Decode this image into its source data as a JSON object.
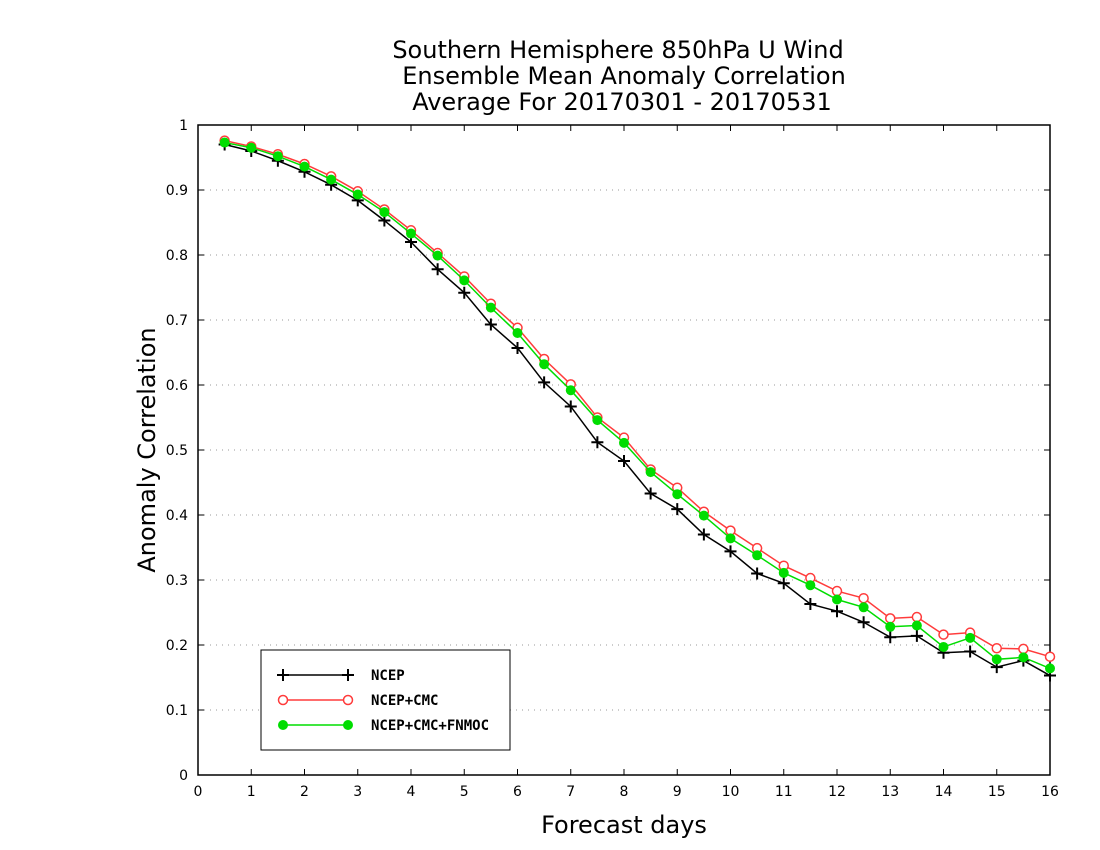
{
  "chart_data": {
    "type": "line",
    "title": [
      "Southern Hemisphere 850hPa U Wind",
      "Ensemble Mean Anomaly Correlation",
      "Average For 20170301 - 20170531"
    ],
    "xlabel": "Forecast days",
    "ylabel": "Anomaly Correlation",
    "xlim": [
      0,
      16
    ],
    "ylim": [
      0,
      1
    ],
    "xticks": [
      "0",
      "1",
      "2",
      "3",
      "4",
      "5",
      "6",
      "7",
      "8",
      "9",
      "10",
      "11",
      "12",
      "13",
      "14",
      "15",
      "16"
    ],
    "yticks": [
      "0",
      "0.1",
      "0.2",
      "0.3",
      "0.4",
      "0.5",
      "0.6",
      "0.7",
      "0.8",
      "0.9",
      "1"
    ],
    "grid": "dotted horizontal",
    "legend_position": "bottom-left",
    "x": [
      0.5,
      1,
      1.5,
      2,
      2.5,
      3,
      3.5,
      4,
      4.5,
      5,
      5.5,
      6,
      6.5,
      7,
      7.5,
      8,
      8.5,
      9,
      9.5,
      10,
      10.5,
      11,
      11.5,
      12,
      12.5,
      13,
      13.5,
      14,
      14.5,
      15,
      15.5,
      16
    ],
    "series": [
      {
        "name": "NCEP",
        "color": "#000000",
        "marker": "plus",
        "values": [
          0.97,
          0.96,
          0.945,
          0.928,
          0.908,
          0.884,
          0.853,
          0.82,
          0.778,
          0.742,
          0.693,
          0.657,
          0.604,
          0.567,
          0.512,
          0.483,
          0.433,
          0.409,
          0.37,
          0.344,
          0.31,
          0.295,
          0.263,
          0.252,
          0.235,
          0.212,
          0.214,
          0.188,
          0.19,
          0.166,
          0.176,
          0.153
        ]
      },
      {
        "name": "NCEP+CMC",
        "color": "#ff3b3b",
        "marker": "open-circle",
        "values": [
          0.976,
          0.967,
          0.955,
          0.94,
          0.921,
          0.898,
          0.87,
          0.838,
          0.803,
          0.767,
          0.725,
          0.688,
          0.64,
          0.601,
          0.55,
          0.519,
          0.47,
          0.442,
          0.405,
          0.376,
          0.349,
          0.322,
          0.303,
          0.283,
          0.272,
          0.241,
          0.243,
          0.216,
          0.219,
          0.195,
          0.194,
          0.182
        ]
      },
      {
        "name": "NCEP+CMC+FNMOC",
        "color": "#00dd00",
        "marker": "filled-circle",
        "values": [
          0.973,
          0.965,
          0.952,
          0.936,
          0.916,
          0.893,
          0.866,
          0.833,
          0.799,
          0.761,
          0.719,
          0.68,
          0.632,
          0.592,
          0.546,
          0.511,
          0.466,
          0.432,
          0.399,
          0.364,
          0.338,
          0.311,
          0.292,
          0.27,
          0.258,
          0.228,
          0.23,
          0.197,
          0.211,
          0.178,
          0.181,
          0.164
        ]
      }
    ]
  }
}
